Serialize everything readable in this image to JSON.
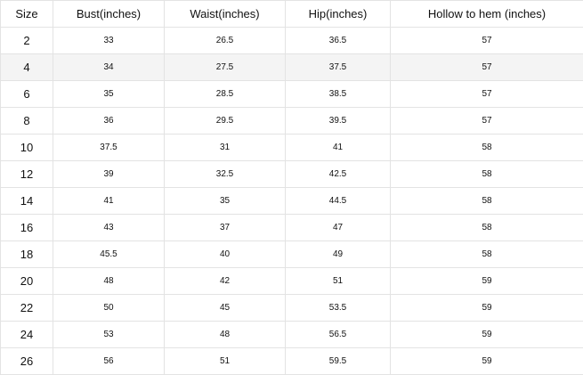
{
  "headers": [
    "Size",
    "Bust(inches)",
    "Waist(inches)",
    "Hip(inches)",
    "Hollow to hem (inches)"
  ],
  "rows": [
    [
      "2",
      "33",
      "26.5",
      "36.5",
      "57"
    ],
    [
      "4",
      "34",
      "27.5",
      "37.5",
      "57"
    ],
    [
      "6",
      "35",
      "28.5",
      "38.5",
      "57"
    ],
    [
      "8",
      "36",
      "29.5",
      "39.5",
      "57"
    ],
    [
      "10",
      "37.5",
      "31",
      "41",
      "58"
    ],
    [
      "12",
      "39",
      "32.5",
      "42.5",
      "58"
    ],
    [
      "14",
      "41",
      "35",
      "44.5",
      "58"
    ],
    [
      "16",
      "43",
      "37",
      "47",
      "58"
    ],
    [
      "18",
      "45.5",
      "40",
      "49",
      "58"
    ],
    [
      "20",
      "48",
      "42",
      "51",
      "59"
    ],
    [
      "22",
      "50",
      "45",
      "53.5",
      "59"
    ],
    [
      "24",
      "53",
      "48",
      "56.5",
      "59"
    ],
    [
      "26",
      "56",
      "51",
      "59.5",
      "59"
    ]
  ],
  "highlighted_row": "4"
}
